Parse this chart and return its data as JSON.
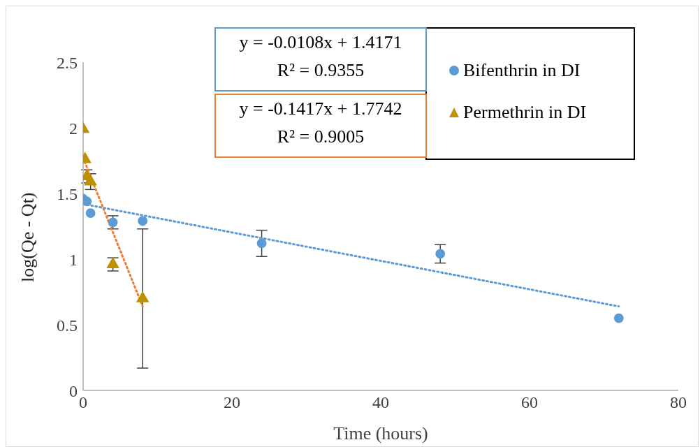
{
  "chart_data": {
    "type": "scatter",
    "xlabel": "Time (hours)",
    "ylabel": "log(Qe - Qt)",
    "xlim": [
      0,
      80
    ],
    "xticks": [
      0,
      20,
      40,
      60,
      80
    ],
    "ylim": [
      0,
      2.5
    ],
    "yticks": [
      0,
      0.5,
      1,
      1.5,
      2,
      2.5
    ],
    "grid": false,
    "legend": "top right",
    "annotations": [
      "y = -0.0108x + 1.4171\nR² = 0.9355",
      "y = -0.1417x + 1.7742\nR² = 0.9005"
    ],
    "series": [
      {
        "name": "Bifenthrin in DI",
        "marker": "circle",
        "color": "#5b9bd5",
        "x": [
          0,
          0.5,
          1,
          4,
          8,
          24,
          48,
          72
        ],
        "values": [
          1.46,
          1.44,
          1.35,
          1.28,
          1.29,
          1.12,
          1.04,
          0.55
        ],
        "errors": [
          null,
          null,
          null,
          0.05,
          null,
          0.1,
          0.07,
          null
        ]
      },
      {
        "name": "Permethrin in DI",
        "marker": "triangle",
        "color": "#bf9000",
        "x": [
          0,
          0.25,
          0.5,
          1,
          4,
          8
        ],
        "values": [
          1.99,
          1.76,
          1.63,
          1.59,
          0.96,
          0.7
        ],
        "errors": [
          null,
          null,
          0.05,
          0.06,
          0.05,
          0.53
        ]
      },
      {
        "type": "line",
        "line_style": "dotted",
        "marker": "none",
        "color": "#5b9bd5",
        "x": [
          0,
          72
        ],
        "values": [
          1.42,
          0.64
        ]
      },
      {
        "type": "line",
        "line_style": "dotted",
        "marker": "none",
        "color": "#ed7d31",
        "x": [
          0,
          8
        ],
        "values": [
          1.77,
          0.64
        ]
      }
    ]
  }
}
